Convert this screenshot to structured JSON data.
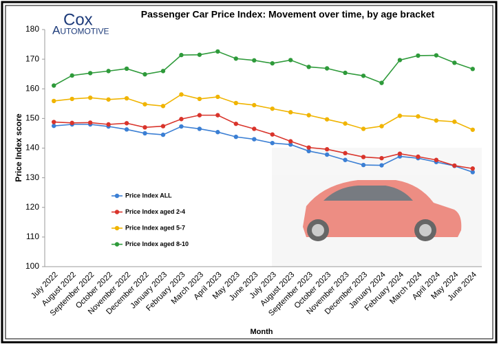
{
  "chart_data": {
    "type": "line",
    "title": "Passenger Car Price Index: Movement over time, by age bracket",
    "annotations": [
      "Cox",
      "Automotive"
    ],
    "x_label": "Month",
    "y_label": "Price Index score",
    "categories": [
      "July 2022",
      "August 2022",
      "September 2022",
      "October 2022",
      "November 2022",
      "December 2022",
      "January 2023",
      "February 2023",
      "March 2023",
      "April 2023",
      "May 2023",
      "June 2023",
      "July 2023",
      "August 2023",
      "September 2023",
      "October 2023",
      "November 2023",
      "December 2023",
      "January 2024",
      "February 2024",
      "March 2024",
      "April 2024",
      "May 2024",
      "June 2024"
    ],
    "series": [
      {
        "name": "Price Index ALL",
        "color": "#3b7fd4",
        "values": [
          147.5,
          148,
          148,
          147.3,
          146.3,
          145,
          144.5,
          147.3,
          146.5,
          145.4,
          143.8,
          143,
          141.7,
          141.2,
          139,
          137.8,
          136,
          134.3,
          134.2,
          137.2,
          136.6,
          135.3,
          134,
          131.9
        ]
      },
      {
        "name": "Price Index aged 2-4",
        "color": "#d9342b",
        "values": [
          148.8,
          148.5,
          148.6,
          148,
          148.4,
          147,
          147.4,
          149.8,
          151.1,
          151.1,
          148.2,
          146.5,
          144.6,
          142.3,
          140.2,
          139.6,
          138.3,
          137,
          136.6,
          138.1,
          137.1,
          136,
          134.1,
          133.1
        ]
      },
      {
        "name": "Price Index aged 5-7",
        "color": "#f0b400",
        "values": [
          155.9,
          156.6,
          157,
          156.4,
          156.8,
          154.8,
          154.2,
          158.1,
          156.6,
          157.3,
          155.2,
          154.5,
          153.3,
          152.1,
          151.1,
          149.7,
          148.3,
          146.5,
          147.4,
          150.9,
          150.7,
          149.3,
          148.9,
          146.2
        ]
      },
      {
        "name": "Price Index aged 8-10",
        "color": "#2e9a3a",
        "values": [
          161.1,
          164.5,
          165.3,
          166,
          166.8,
          164.9,
          166,
          171.4,
          171.5,
          172.6,
          170.2,
          169.6,
          168.6,
          169.7,
          167.4,
          166.9,
          165.4,
          164.4,
          162,
          169.7,
          171.2,
          171.3,
          168.8,
          166.7
        ]
      }
    ],
    "ylim": [
      100,
      180
    ],
    "yticks": [
      100,
      110,
      120,
      130,
      140,
      150,
      160,
      170,
      180
    ],
    "grid": false,
    "legend": "center-left"
  }
}
